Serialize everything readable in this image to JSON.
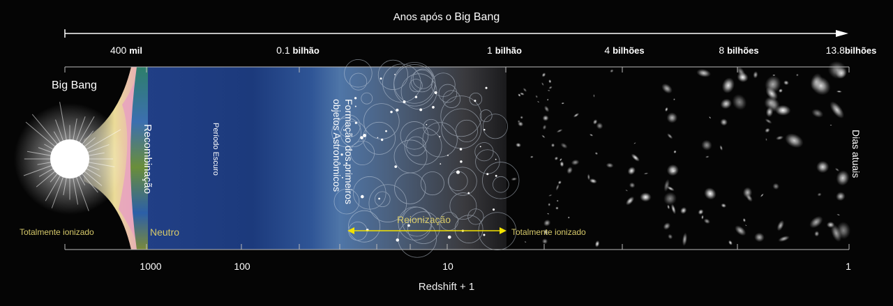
{
  "top_axis": {
    "title_prefix": "Anos após o",
    "title_emphasis": "Big Bang",
    "ticks": [
      {
        "num": "400",
        "unit": "mil"
      },
      {
        "num": "0.1",
        "unit": "bilhão"
      },
      {
        "num": "1",
        "unit": "bilhão"
      },
      {
        "num": "4",
        "unit": "bilhões"
      },
      {
        "num": "8",
        "unit": "bilhões"
      },
      {
        "num": "13.8",
        "unit": "bilhões"
      }
    ]
  },
  "bottom_axis": {
    "title": "Redshift + 1",
    "ticks": [
      "1000",
      "100",
      "10",
      "1"
    ]
  },
  "labels": {
    "big_bang": "Big Bang",
    "recombination": "Recombinação",
    "dark_period": "Período Escuro",
    "first_objects_line1": "Formação dos primeiros",
    "first_objects_line2": "objetos Astronômicos",
    "present_day": "Dias atuais",
    "fully_ionized_left": "Totalmente ionizado",
    "neutral": "Neutro",
    "reionization": "Reionização",
    "fully_ionized_right": "Totalmente ionizado"
  },
  "colors": {
    "annotation_yellow": "#d6c96a",
    "arrow_yellow": "#f2e200",
    "dark_period_blue": "#1c3a7c"
  }
}
